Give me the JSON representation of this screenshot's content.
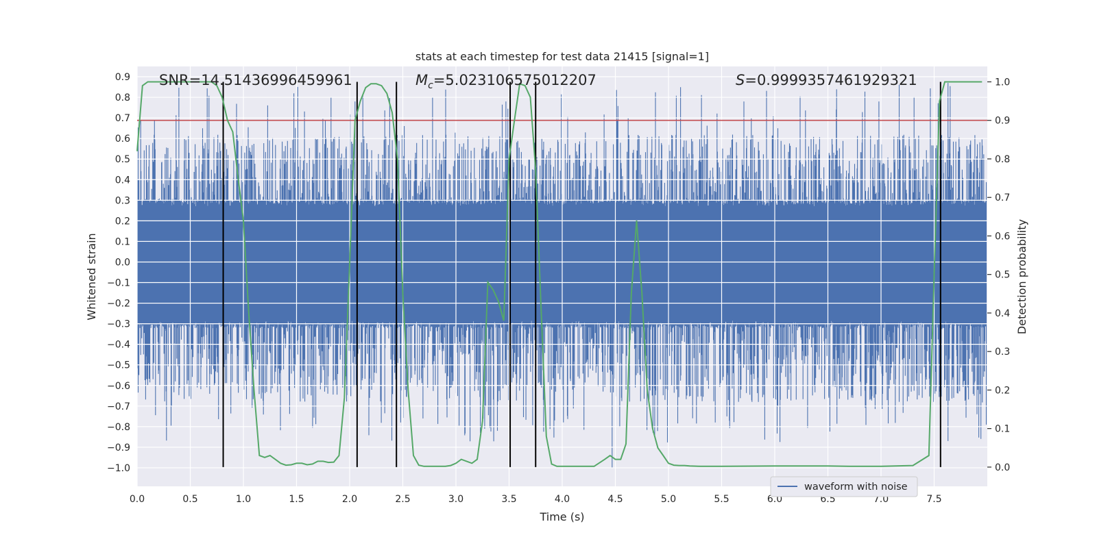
{
  "chart_data": {
    "type": "line",
    "title": "stats at each timestep for test data 21415 [signal=1]",
    "xlabel": "Time (s)",
    "ylabel_left": "Whitened strain",
    "ylabel_right": "Detection probability",
    "xlim": [
      0.0,
      8.0
    ],
    "ylim_left": [
      -1.09,
      0.95
    ],
    "ylim_right": [
      -0.05,
      1.04
    ],
    "x_ticks": [
      "0.0",
      "0.5",
      "1.0",
      "1.5",
      "2.0",
      "2.5",
      "3.0",
      "3.5",
      "4.0",
      "4.5",
      "5.0",
      "5.5",
      "6.0",
      "6.5",
      "7.0",
      "7.5"
    ],
    "y_left_ticks": [
      "0.9",
      "0.8",
      "0.7",
      "0.6",
      "0.5",
      "0.4",
      "0.3",
      "0.2",
      "0.1",
      "0.0",
      "−0.1",
      "−0.2",
      "−0.3",
      "−0.4",
      "−0.5",
      "−0.6",
      "−0.7",
      "−0.8",
      "−0.9",
      "−1.0"
    ],
    "y_right_ticks": [
      "1.0",
      "0.9",
      "0.8",
      "0.7",
      "0.6",
      "0.5",
      "0.4",
      "0.3",
      "0.2",
      "0.1",
      "0.0"
    ],
    "grid": true,
    "legend": {
      "placement": "lower-right",
      "entries": [
        "waveform with noise"
      ]
    },
    "annotations": {
      "snr": "SNR=14.51436996459961",
      "mc_symbol": "M",
      "mc_sub": "c",
      "mc_value": "=5.023106575012207",
      "s_symbol": "S",
      "s_value": "=0.9999357461929321"
    },
    "threshold": {
      "axis": "right",
      "value": 0.9
    },
    "vlines": [
      0.81,
      2.07,
      2.44,
      3.51,
      3.75,
      7.56
    ],
    "series": [
      {
        "name": "waveform with noise",
        "axis": "left",
        "kind": "noise",
        "core_amplitude": 0.3,
        "max_positive": 0.87,
        "max_negative": -1.0
      },
      {
        "axis": "right",
        "x": [
          0.0,
          0.05,
          0.1,
          0.2,
          0.3,
          0.4,
          0.5,
          0.6,
          0.7,
          0.75,
          0.8,
          0.85,
          0.9,
          0.95,
          1.0,
          1.05,
          1.1,
          1.15,
          1.2,
          1.25,
          1.3,
          1.35,
          1.4,
          1.45,
          1.5,
          1.55,
          1.6,
          1.65,
          1.7,
          1.75,
          1.8,
          1.85,
          1.9,
          1.95,
          2.0,
          2.05,
          2.1,
          2.15,
          2.2,
          2.25,
          2.3,
          2.35,
          2.4,
          2.45,
          2.5,
          2.55,
          2.6,
          2.65,
          2.7,
          2.75,
          2.8,
          2.85,
          2.9,
          2.95,
          3.0,
          3.05,
          3.1,
          3.15,
          3.2,
          3.25,
          3.3,
          3.35,
          3.4,
          3.45,
          3.5,
          3.55,
          3.6,
          3.65,
          3.7,
          3.75,
          3.8,
          3.85,
          3.9,
          3.95,
          4.0,
          4.05,
          4.1,
          4.2,
          4.3,
          4.4,
          4.45,
          4.5,
          4.55,
          4.6,
          4.65,
          4.7,
          4.75,
          4.8,
          4.85,
          4.9,
          4.95,
          5.0,
          5.05,
          5.1,
          5.15,
          5.2,
          5.3,
          5.4,
          5.5,
          6.0,
          6.5,
          6.7,
          7.0,
          7.3,
          7.45,
          7.5,
          7.55,
          7.6,
          7.65,
          7.7,
          8.0
        ],
        "values": [
          0.82,
          0.99,
          1.0,
          1.0,
          1.0,
          1.0,
          1.0,
          1.0,
          1.0,
          0.99,
          0.96,
          0.9,
          0.87,
          0.75,
          0.64,
          0.4,
          0.2,
          0.03,
          0.025,
          0.03,
          0.02,
          0.01,
          0.005,
          0.006,
          0.01,
          0.01,
          0.006,
          0.008,
          0.015,
          0.015,
          0.012,
          0.013,
          0.03,
          0.18,
          0.53,
          0.9,
          0.95,
          0.985,
          0.995,
          0.995,
          0.99,
          0.97,
          0.92,
          0.8,
          0.45,
          0.2,
          0.03,
          0.005,
          0.002,
          0.002,
          0.002,
          0.002,
          0.002,
          0.004,
          0.01,
          0.02,
          0.015,
          0.01,
          0.02,
          0.12,
          0.48,
          0.46,
          0.43,
          0.38,
          0.8,
          0.9,
          0.995,
          0.99,
          0.96,
          0.77,
          0.42,
          0.08,
          0.008,
          0.002,
          0.002,
          0.002,
          0.002,
          0.002,
          0.002,
          0.02,
          0.03,
          0.02,
          0.02,
          0.06,
          0.45,
          0.64,
          0.45,
          0.2,
          0.1,
          0.05,
          0.03,
          0.01,
          0.005,
          0.004,
          0.004,
          0.003,
          0.002,
          0.002,
          0.002,
          0.003,
          0.003,
          0.002,
          0.002,
          0.004,
          0.03,
          0.5,
          0.95,
          1.0,
          1.0,
          1.0,
          1.0
        ]
      }
    ],
    "colors": {
      "background": "#eaeaf2",
      "grid": "#ffffff",
      "waveform": "#4c72b0",
      "probability": "#55a868",
      "threshold": "#c44e52",
      "vline": "#000000",
      "text": "#262626"
    }
  }
}
